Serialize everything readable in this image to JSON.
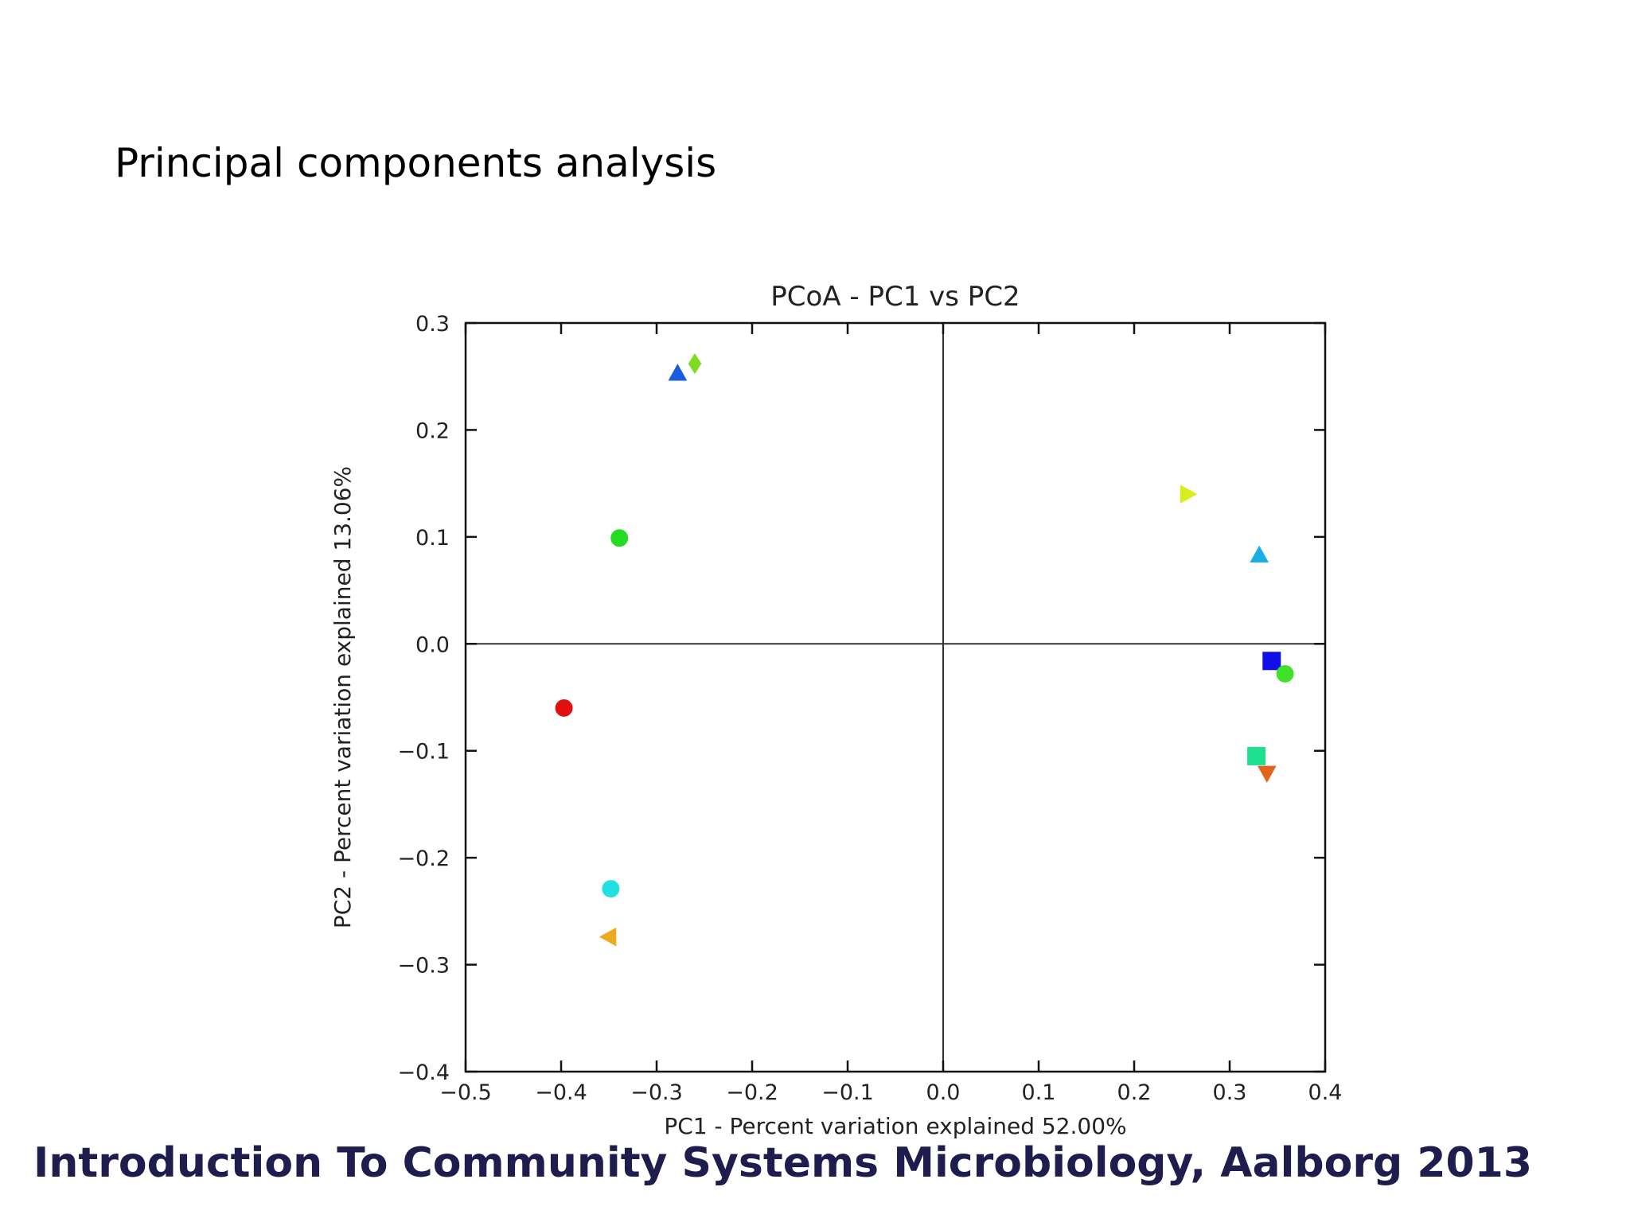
{
  "slide": {
    "title": "Principal components analysis",
    "footer": "Introduction To Community Systems Microbiology, Aalborg 2013"
  },
  "chart_data": {
    "type": "scatter",
    "title": "PCoA - PC1 vs PC2",
    "xlabel": "PC1 - Percent variation explained 52.00%",
    "ylabel": "PC2 - Percent variation explained 13.06%",
    "xlim": [
      -0.5,
      0.4
    ],
    "ylim": [
      -0.4,
      0.3
    ],
    "xticks": [
      -0.5,
      -0.4,
      -0.3,
      -0.2,
      -0.1,
      0.0,
      0.1,
      0.2,
      0.3,
      0.4
    ],
    "xtick_labels": [
      "−0.5",
      "−0.4",
      "−0.3",
      "−0.2",
      "−0.1",
      "0.0",
      "0.1",
      "0.2",
      "0.3",
      "0.4"
    ],
    "yticks": [
      0.3,
      0.2,
      0.1,
      0.0,
      -0.1,
      -0.2,
      -0.3,
      -0.4
    ],
    "ytick_labels": [
      "0.3",
      "0.2",
      "0.1",
      "0.0",
      "−0.1",
      "−0.2",
      "−0.3",
      "−0.4"
    ],
    "zero_lines": true,
    "points": [
      {
        "x": -0.278,
        "y": 0.253,
        "marker": "triangle-up",
        "color": "#1a5ce0"
      },
      {
        "x": -0.26,
        "y": 0.262,
        "marker": "diamond",
        "color": "#7ddc1f"
      },
      {
        "x": -0.339,
        "y": 0.099,
        "marker": "hexagon",
        "color": "#22dd22"
      },
      {
        "x": -0.397,
        "y": -0.06,
        "marker": "hexagon",
        "color": "#e01010"
      },
      {
        "x": -0.348,
        "y": -0.229,
        "marker": "hexagon",
        "color": "#22e0e0"
      },
      {
        "x": -0.35,
        "y": -0.274,
        "marker": "triangle-left",
        "color": "#f0a820"
      },
      {
        "x": 0.256,
        "y": 0.14,
        "marker": "triangle-right",
        "color": "#d8ee1c"
      },
      {
        "x": 0.331,
        "y": 0.083,
        "marker": "triangle-up",
        "color": "#18aee6"
      },
      {
        "x": 0.344,
        "y": -0.016,
        "marker": "square",
        "color": "#0f0fe6"
      },
      {
        "x": 0.358,
        "y": -0.028,
        "marker": "hexagon",
        "color": "#42e02a"
      },
      {
        "x": 0.328,
        "y": -0.105,
        "marker": "square",
        "color": "#1ee090"
      },
      {
        "x": 0.339,
        "y": -0.121,
        "marker": "triangle-down",
        "color": "#e2641a"
      }
    ]
  }
}
